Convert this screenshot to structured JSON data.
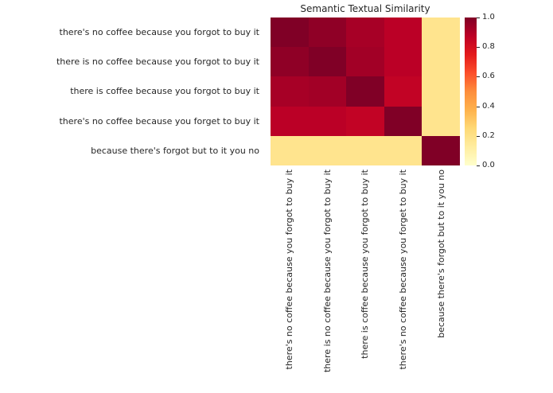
{
  "chart_data": {
    "type": "heatmap",
    "title": "Semantic Textual Similarity",
    "labels": [
      "there's no coffee because you forgot to buy it",
      "there is no coffee because you forgot to buy it",
      "there is coffee because you forgot to buy it",
      "there's no coffee because you forget to buy it",
      "because there's forgot but to it you no"
    ],
    "matrix": [
      [
        1.0,
        0.97,
        0.92,
        0.88,
        0.18
      ],
      [
        0.97,
        1.0,
        0.93,
        0.88,
        0.18
      ],
      [
        0.92,
        0.93,
        1.0,
        0.86,
        0.18
      ],
      [
        0.88,
        0.88,
        0.86,
        1.0,
        0.18
      ],
      [
        0.18,
        0.18,
        0.18,
        0.18,
        1.0
      ]
    ],
    "vmin": 0.0,
    "vmax": 1.0,
    "colorbar_ticks": [
      "1.0",
      "0.8",
      "0.6",
      "0.4",
      "0.2",
      "0.0"
    ],
    "colorbar_position": "right",
    "grid": false,
    "colormap": {
      "name": "YlOrRd",
      "stops": [
        {
          "v": 0.0,
          "c": "#ffffcc"
        },
        {
          "v": 0.125,
          "c": "#ffeda0"
        },
        {
          "v": 0.25,
          "c": "#fed976"
        },
        {
          "v": 0.375,
          "c": "#feb24c"
        },
        {
          "v": 0.5,
          "c": "#fd8d3c"
        },
        {
          "v": 0.625,
          "c": "#fc4e2a"
        },
        {
          "v": 0.75,
          "c": "#e31a1c"
        },
        {
          "v": 0.875,
          "c": "#bd0026"
        },
        {
          "v": 1.0,
          "c": "#800026"
        }
      ]
    }
  }
}
